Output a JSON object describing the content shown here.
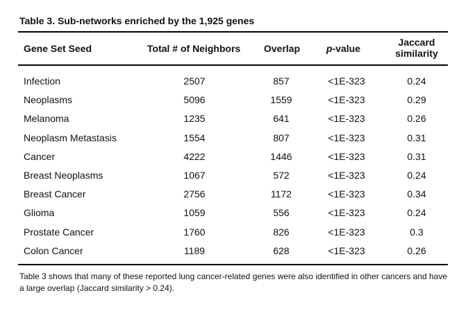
{
  "table": {
    "caption": "Table 3. Sub-networks enriched by the 1,925 genes",
    "headers": {
      "seed": "Gene Set Seed",
      "neighbors": "Total # of Neighbors",
      "overlap": "Overlap",
      "pvalue_italic": "p",
      "pvalue_rest": "-value",
      "jaccard_line1": "Jaccard",
      "jaccard_line2": "similarity"
    },
    "rows": [
      {
        "seed": "Infection",
        "neighbors": "2507",
        "overlap": "857",
        "pvalue": "<1E-323",
        "jaccard": "0.24"
      },
      {
        "seed": "Neoplasms",
        "neighbors": "5096",
        "overlap": "1559",
        "pvalue": "<1E-323",
        "jaccard": "0.29"
      },
      {
        "seed": "Melanoma",
        "neighbors": "1235",
        "overlap": "641",
        "pvalue": "<1E-323",
        "jaccard": "0.26"
      },
      {
        "seed": "Neoplasm Metastasis",
        "neighbors": "1554",
        "overlap": "807",
        "pvalue": "<1E-323",
        "jaccard": "0.31"
      },
      {
        "seed": "Cancer",
        "neighbors": "4222",
        "overlap": "1446",
        "pvalue": "<1E-323",
        "jaccard": "0.31"
      },
      {
        "seed": "Breast Neoplasms",
        "neighbors": "1067",
        "overlap": "572",
        "pvalue": "<1E-323",
        "jaccard": "0.24"
      },
      {
        "seed": "Breast Cancer",
        "neighbors": "2756",
        "overlap": "1172",
        "pvalue": "<1E-323",
        "jaccard": "0.34"
      },
      {
        "seed": "Glioma",
        "neighbors": "1059",
        "overlap": "556",
        "pvalue": "<1E-323",
        "jaccard": "0.24"
      },
      {
        "seed": "Prostate Cancer",
        "neighbors": "1760",
        "overlap": "826",
        "pvalue": "<1E-323",
        "jaccard": "0.3"
      },
      {
        "seed": "Colon Cancer",
        "neighbors": "1189",
        "overlap": "628",
        "pvalue": "<1E-323",
        "jaccard": "0.26"
      }
    ],
    "note": "Table 3 shows that many of these reported lung cancer-related genes were also identified in other cancers and have a large overlap (Jaccard similarity > 0.24)."
  }
}
